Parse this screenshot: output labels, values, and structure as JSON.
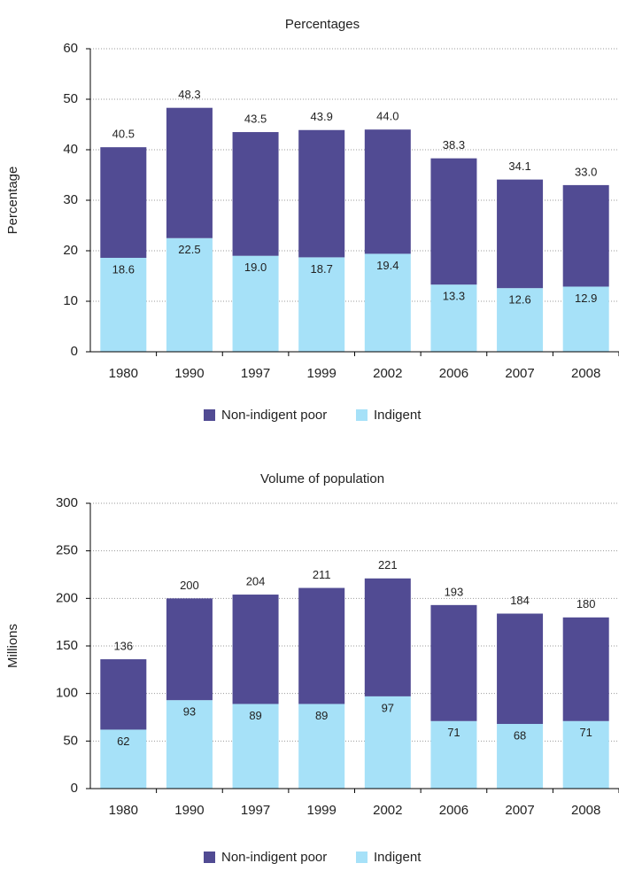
{
  "chart_data": [
    {
      "type": "stacked_bar",
      "title": "Percentages",
      "y_label": "Percentage",
      "categories": [
        "1980",
        "1990",
        "1997",
        "1999",
        "2002",
        "2006",
        "2007",
        "2008"
      ],
      "series": [
        {
          "name": "Indigent",
          "color": "#a6e1f8",
          "values": [
            18.6,
            22.5,
            19.0,
            18.7,
            19.4,
            13.3,
            12.6,
            12.9
          ],
          "value_labels": [
            "18.6",
            "22.5",
            "19.0",
            "18.7",
            "19.4",
            "13.3",
            "12.6",
            "12.9"
          ]
        },
        {
          "name": "Non-indigent poor",
          "color": "#514b93",
          "values": [
            21.9,
            25.8,
            24.5,
            25.2,
            24.6,
            25.0,
            21.5,
            20.1
          ]
        }
      ],
      "total_labels": [
        "40.5",
        "48.3",
        "43.5",
        "43.9",
        "44.0",
        "38.3",
        "34.1",
        "33.0"
      ],
      "ylim": [
        0,
        60
      ],
      "yticks": [
        0,
        10,
        20,
        30,
        40,
        50,
        60
      ],
      "grid": true
    },
    {
      "type": "stacked_bar",
      "title": "Volume of population",
      "y_label": "Millions",
      "categories": [
        "1980",
        "1990",
        "1997",
        "1999",
        "2002",
        "2006",
        "2007",
        "2008"
      ],
      "series": [
        {
          "name": "Indigent",
          "color": "#a6e1f8",
          "values": [
            62,
            93,
            89,
            89,
            97,
            71,
            68,
            71
          ]
        },
        {
          "name": "Non-indigent poor",
          "color": "#514b93",
          "values": [
            74,
            107,
            115,
            122,
            124,
            122,
            116,
            109
          ]
        }
      ],
      "total_labels": [
        "136",
        "200",
        "204",
        "211",
        "221",
        "193",
        "184",
        "180"
      ],
      "ylim": [
        0,
        300
      ],
      "yticks": [
        0,
        50,
        100,
        150,
        200,
        250,
        300
      ],
      "grid": true
    }
  ]
}
